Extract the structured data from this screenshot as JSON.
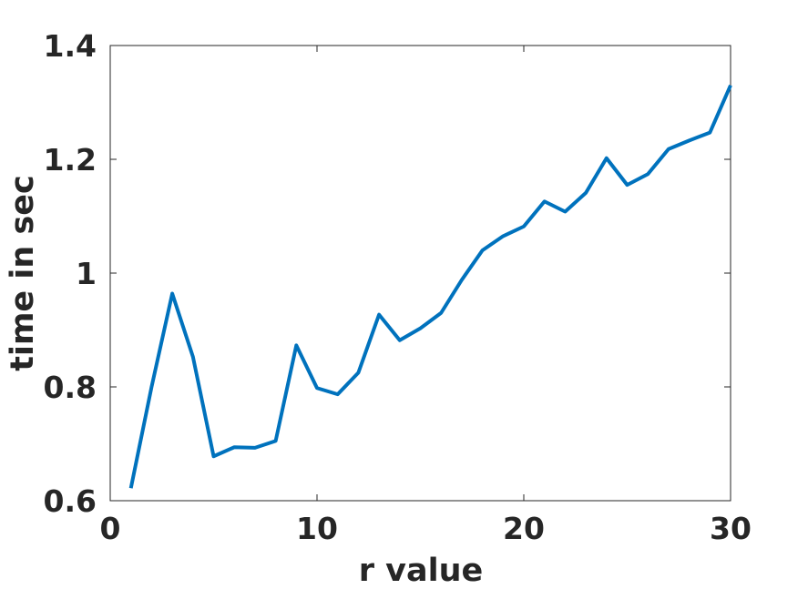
{
  "chart_data": {
    "type": "line",
    "title": "",
    "xlabel": "r value",
    "ylabel": "time in sec",
    "xlim": [
      0,
      30
    ],
    "ylim": [
      0.6,
      1.4
    ],
    "xticks": [
      0,
      10,
      20,
      30
    ],
    "xtick_labels": [
      "0",
      "10",
      "20",
      "30"
    ],
    "yticks": [
      0.6,
      0.8,
      1.0,
      1.2,
      1.4
    ],
    "ytick_labels": [
      "0.6",
      "0.8",
      "1",
      "1.2",
      "1.4"
    ],
    "grid": false,
    "series": [
      {
        "color": "#0072BD",
        "x": [
          1,
          2,
          3,
          4,
          5,
          6,
          7,
          8,
          9,
          10,
          11,
          12,
          13,
          14,
          15,
          16,
          17,
          18,
          19,
          20,
          21,
          22,
          23,
          24,
          25,
          26,
          27,
          28,
          29,
          30
        ],
        "y": [
          0.622,
          0.8,
          0.964,
          0.853,
          0.678,
          0.694,
          0.693,
          0.705,
          0.873,
          0.798,
          0.787,
          0.825,
          0.927,
          0.882,
          0.903,
          0.93,
          0.988,
          1.04,
          1.065,
          1.082,
          1.126,
          1.108,
          1.141,
          1.202,
          1.155,
          1.174,
          1.218,
          1.233,
          1.247,
          1.33
        ]
      }
    ]
  }
}
